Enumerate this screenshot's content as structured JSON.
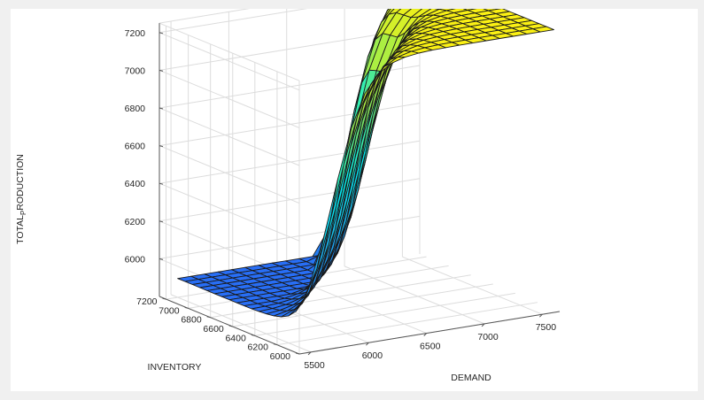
{
  "chart_data": {
    "type": "surface",
    "zlabel_main": "TOTAL",
    "zlabel_sub": "P",
    "zlabel_tail": "RODUCTION",
    "xlabel": "DEMAND",
    "ylabel": "INVENTORY",
    "x_ticks": [
      "5500",
      "6000",
      "6500",
      "7000",
      "7500"
    ],
    "y_ticks": [
      "6000",
      "6200",
      "6400",
      "6600",
      "6800",
      "7000",
      "7200"
    ],
    "z_ticks": [
      "6000",
      "6200",
      "6400",
      "6600",
      "6800",
      "7000",
      "7200"
    ],
    "xlim": [
      5400,
      7650
    ],
    "ylim": [
      6000,
      7260
    ],
    "zlim": [
      5800,
      7250
    ],
    "grid": true,
    "colormap": "parula",
    "grid_size": [
      19,
      19
    ],
    "surface_description": "Total production plateaus near 7300 at high demand / low inventory and drops to ~5900 at low demand / high inventory, with terraced transitions",
    "z_low": 5900,
    "z_high": 7300
  }
}
